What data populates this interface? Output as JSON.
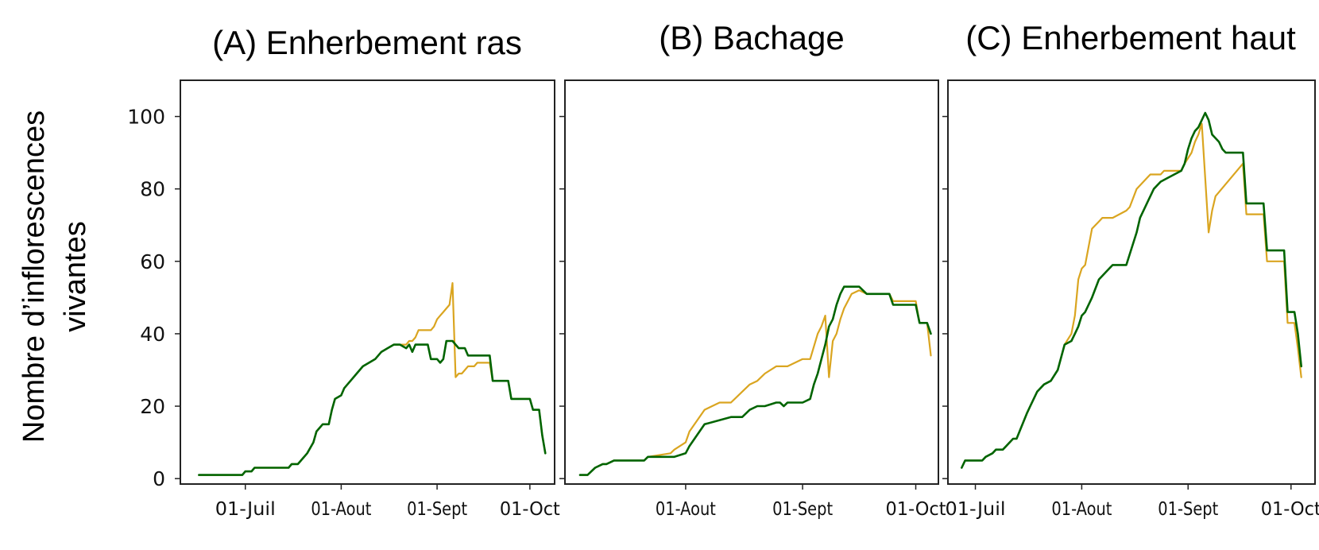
{
  "ylabel_lines": [
    "Nombre d’inflorescences",
    "vivantes"
  ],
  "colors": {
    "series_1": "#DAA520",
    "series_2": "#006400"
  },
  "chart_data": [
    {
      "type": "line",
      "title": "(A) Enherbement ras",
      "xlabel": "",
      "ylabel": "Nombre d’inflorescences vivantes",
      "ylim": [
        -1.5,
        110
      ],
      "xlim": [
        "2021-06-10",
        "2021-10-09"
      ],
      "xticks": [
        {
          "date": "2021-07-01",
          "label": "01-Juil"
        },
        {
          "date": "2021-08-01",
          "label": "01-Aout"
        },
        {
          "date": "2021-09-01",
          "label": "01-Sept"
        },
        {
          "date": "2021-10-01",
          "label": "01-Oct"
        }
      ],
      "yticks": [
        0,
        20,
        40,
        60,
        80,
        100
      ],
      "grid": false,
      "series": [
        {
          "color": "#DAA520",
          "x": [
            "2021-06-16",
            "2021-06-30",
            "2021-07-01",
            "2021-07-03",
            "2021-07-04",
            "2021-07-15",
            "2021-07-16",
            "2021-07-18",
            "2021-07-19",
            "2021-07-21",
            "2021-07-23",
            "2021-07-24",
            "2021-07-26",
            "2021-07-28",
            "2021-07-29",
            "2021-07-30",
            "2021-08-01",
            "2021-08-02",
            "2021-08-04",
            "2021-08-06",
            "2021-08-08",
            "2021-08-10",
            "2021-08-12",
            "2021-08-14",
            "2021-08-16",
            "2021-08-18",
            "2021-08-20",
            "2021-08-22",
            "2021-08-23",
            "2021-08-24",
            "2021-08-25",
            "2021-08-26",
            "2021-08-27",
            "2021-08-28",
            "2021-08-29",
            "2021-08-30",
            "2021-08-31",
            "2021-09-01",
            "2021-09-02",
            "2021-09-03",
            "2021-09-04",
            "2021-09-05",
            "2021-09-06",
            "2021-09-07",
            "2021-09-08",
            "2021-09-09",
            "2021-09-10",
            "2021-09-11",
            "2021-09-12",
            "2021-09-13",
            "2021-09-14",
            "2021-09-15",
            "2021-09-17",
            "2021-09-18",
            "2021-09-19",
            "2021-09-24",
            "2021-09-25",
            "2021-10-01",
            "2021-10-02",
            "2021-10-04",
            "2021-10-05",
            "2021-10-06"
          ],
          "y": [
            1,
            1,
            2,
            2,
            3,
            3,
            4,
            4,
            5,
            7,
            10,
            13,
            15,
            15,
            19,
            22,
            23,
            25,
            27,
            29,
            31,
            32,
            33,
            35,
            36,
            37,
            37,
            37,
            38,
            38,
            39,
            41,
            41,
            41,
            41,
            41,
            42,
            44,
            45,
            46,
            47,
            48,
            54,
            28,
            29,
            29,
            30,
            31,
            31,
            31,
            32,
            32,
            32,
            32,
            27,
            27,
            22,
            22,
            19,
            19,
            12,
            7
          ],
          "name": ""
        },
        {
          "color": "#006400",
          "x": [
            "2021-06-16",
            "2021-06-30",
            "2021-07-01",
            "2021-07-03",
            "2021-07-04",
            "2021-07-15",
            "2021-07-16",
            "2021-07-18",
            "2021-07-19",
            "2021-07-21",
            "2021-07-23",
            "2021-07-24",
            "2021-07-26",
            "2021-07-28",
            "2021-07-29",
            "2021-07-30",
            "2021-08-01",
            "2021-08-02",
            "2021-08-04",
            "2021-08-06",
            "2021-08-08",
            "2021-08-10",
            "2021-08-12",
            "2021-08-14",
            "2021-08-16",
            "2021-08-18",
            "2021-08-20",
            "2021-08-22",
            "2021-08-23",
            "2021-08-24",
            "2021-08-25",
            "2021-08-26",
            "2021-08-27",
            "2021-08-28",
            "2021-08-29",
            "2021-08-30",
            "2021-09-01",
            "2021-09-02",
            "2021-09-03",
            "2021-09-04",
            "2021-09-05",
            "2021-09-06",
            "2021-09-07",
            "2021-09-08",
            "2021-09-09",
            "2021-09-10",
            "2021-09-11",
            "2021-09-12",
            "2021-09-13",
            "2021-09-14",
            "2021-09-15",
            "2021-09-17",
            "2021-09-18",
            "2021-09-19",
            "2021-09-24",
            "2021-09-25",
            "2021-10-01",
            "2021-10-02",
            "2021-10-04",
            "2021-10-05",
            "2021-10-06"
          ],
          "y": [
            1,
            1,
            2,
            2,
            3,
            3,
            4,
            4,
            5,
            7,
            10,
            13,
            15,
            15,
            19,
            22,
            23,
            25,
            27,
            29,
            31,
            32,
            33,
            35,
            36,
            37,
            37,
            36,
            37,
            35,
            37,
            37,
            37,
            37,
            37,
            33,
            33,
            32,
            33,
            38,
            38,
            38,
            37,
            36,
            36,
            36,
            34,
            34,
            34,
            34,
            34,
            34,
            34,
            27,
            27,
            22,
            22,
            19,
            19,
            12,
            7
          ],
          "name": ""
        }
      ]
    },
    {
      "type": "line",
      "title": "(B) Bachage",
      "xlabel": "",
      "ylabel": "",
      "ylim": [
        -1.5,
        110
      ],
      "xlim": [
        "2021-06-30",
        "2021-10-07"
      ],
      "xticks": [
        {
          "date": "2021-08-01",
          "label": "01-Aout"
        },
        {
          "date": "2021-09-01",
          "label": "01-Sept"
        },
        {
          "date": "2021-10-01",
          "label": "01-Oct"
        }
      ],
      "yticks": [
        0,
        20,
        40,
        60,
        80,
        100
      ],
      "grid": false,
      "series": [
        {
          "color": "#DAA520",
          "x": [
            "2021-07-04",
            "2021-07-06",
            "2021-07-07",
            "2021-07-08",
            "2021-07-10",
            "2021-07-11",
            "2021-07-13",
            "2021-07-14",
            "2021-07-21",
            "2021-07-22",
            "2021-07-28",
            "2021-07-29",
            "2021-08-01",
            "2021-08-02",
            "2021-08-04",
            "2021-08-06",
            "2021-08-08",
            "2021-08-10",
            "2021-08-13",
            "2021-08-16",
            "2021-08-18",
            "2021-08-20",
            "2021-08-22",
            "2021-08-25",
            "2021-08-28",
            "2021-09-01",
            "2021-09-03",
            "2021-09-05",
            "2021-09-06",
            "2021-09-07",
            "2021-09-08",
            "2021-09-09",
            "2021-09-10",
            "2021-09-11",
            "2021-09-12",
            "2021-09-14",
            "2021-09-16",
            "2021-09-18",
            "2021-09-24",
            "2021-09-25",
            "2021-10-01",
            "2021-10-02",
            "2021-10-04",
            "2021-10-05"
          ],
          "y": [
            1,
            1,
            2,
            3,
            4,
            4,
            5,
            5,
            5,
            6,
            7,
            8,
            10,
            13,
            16,
            19,
            20,
            21,
            21,
            24,
            26,
            27,
            29,
            31,
            31,
            33,
            33,
            40,
            42,
            45,
            28,
            38,
            40,
            44,
            47,
            51,
            52,
            51,
            51,
            49,
            49,
            43,
            43,
            34
          ],
          "name": ""
        },
        {
          "color": "#006400",
          "x": [
            "2021-07-04",
            "2021-07-06",
            "2021-07-07",
            "2021-07-08",
            "2021-07-10",
            "2021-07-11",
            "2021-07-13",
            "2021-07-14",
            "2021-07-21",
            "2021-07-22",
            "2021-07-28",
            "2021-07-29",
            "2021-08-01",
            "2021-08-02",
            "2021-08-04",
            "2021-08-06",
            "2021-08-13",
            "2021-08-16",
            "2021-08-18",
            "2021-08-20",
            "2021-08-22",
            "2021-08-25",
            "2021-08-26",
            "2021-08-27",
            "2021-08-28",
            "2021-09-01",
            "2021-09-03",
            "2021-09-04",
            "2021-09-05",
            "2021-09-06",
            "2021-09-07",
            "2021-09-08",
            "2021-09-09",
            "2021-09-10",
            "2021-09-11",
            "2021-09-12",
            "2021-09-14",
            "2021-09-16",
            "2021-09-18",
            "2021-09-24",
            "2021-09-25",
            "2021-10-01",
            "2021-10-02",
            "2021-10-04",
            "2021-10-05"
          ],
          "y": [
            1,
            1,
            2,
            3,
            4,
            4,
            5,
            5,
            5,
            6,
            6,
            6,
            7,
            9,
            12,
            15,
            17,
            17,
            19,
            20,
            20,
            21,
            21,
            20,
            21,
            21,
            22,
            26,
            29,
            33,
            37,
            42,
            44,
            48,
            51,
            53,
            53,
            53,
            51,
            51,
            48,
            48,
            43,
            43,
            40
          ],
          "name": ""
        }
      ]
    },
    {
      "type": "line",
      "title": "(C) Enherbement haut",
      "xlabel": "",
      "ylabel": "",
      "ylim": [
        -1.5,
        110
      ],
      "xlim": [
        "2021-06-23",
        "2021-10-08"
      ],
      "xticks": [
        {
          "date": "2021-07-01",
          "label": "01-Juil"
        },
        {
          "date": "2021-08-01",
          "label": "01-Aout"
        },
        {
          "date": "2021-09-01",
          "label": "01-Sept"
        },
        {
          "date": "2021-10-01",
          "label": "01-Oct"
        }
      ],
      "yticks": [
        0,
        20,
        40,
        60,
        80,
        100
      ],
      "grid": false,
      "series": [
        {
          "color": "#DAA520",
          "x": [
            "2021-06-27",
            "2021-06-28",
            "2021-07-03",
            "2021-07-04",
            "2021-07-06",
            "2021-07-07",
            "2021-07-09",
            "2021-07-10",
            "2021-07-12",
            "2021-07-13",
            "2021-07-16",
            "2021-07-17",
            "2021-07-19",
            "2021-07-21",
            "2021-07-23",
            "2021-07-25",
            "2021-07-27",
            "2021-07-29",
            "2021-07-30",
            "2021-07-31",
            "2021-08-01",
            "2021-08-02",
            "2021-08-04",
            "2021-08-06",
            "2021-08-07",
            "2021-08-08",
            "2021-08-10",
            "2021-08-14",
            "2021-08-15",
            "2021-08-17",
            "2021-08-20",
            "2021-08-21",
            "2021-08-24",
            "2021-08-25",
            "2021-08-30",
            "2021-08-31",
            "2021-09-02",
            "2021-09-03",
            "2021-09-04",
            "2021-09-05",
            "2021-09-07",
            "2021-09-08",
            "2021-09-09",
            "2021-09-17",
            "2021-09-18",
            "2021-09-23",
            "2021-09-24",
            "2021-09-29",
            "2021-09-30",
            "2021-10-02",
            "2021-10-03",
            "2021-10-04"
          ],
          "y": [
            3,
            5,
            5,
            6,
            7,
            8,
            8,
            9,
            11,
            11,
            18,
            20,
            24,
            26,
            27,
            30,
            37,
            40,
            45,
            55,
            58,
            59,
            69,
            71,
            72,
            72,
            72,
            74,
            75,
            80,
            83,
            84,
            84,
            85,
            85,
            87,
            90,
            93,
            95,
            98,
            68,
            74,
            78,
            87,
            73,
            73,
            60,
            60,
            43,
            43,
            36,
            28
          ],
          "name": ""
        },
        {
          "color": "#006400",
          "x": [
            "2021-06-27",
            "2021-06-28",
            "2021-07-03",
            "2021-07-04",
            "2021-07-06",
            "2021-07-07",
            "2021-07-09",
            "2021-07-10",
            "2021-07-12",
            "2021-07-13",
            "2021-07-16",
            "2021-07-17",
            "2021-07-19",
            "2021-07-21",
            "2021-07-23",
            "2021-07-25",
            "2021-07-27",
            "2021-07-29",
            "2021-07-30",
            "2021-07-31",
            "2021-08-01",
            "2021-08-02",
            "2021-08-04",
            "2021-08-06",
            "2021-08-08",
            "2021-08-10",
            "2021-08-12",
            "2021-08-14",
            "2021-08-17",
            "2021-08-18",
            "2021-08-20",
            "2021-08-22",
            "2021-08-24",
            "2021-08-26",
            "2021-08-30",
            "2021-08-31",
            "2021-09-01",
            "2021-09-02",
            "2021-09-03",
            "2021-09-04",
            "2021-09-05",
            "2021-09-06",
            "2021-09-07",
            "2021-09-08",
            "2021-09-09",
            "2021-09-10",
            "2021-09-11",
            "2021-09-12",
            "2021-09-17",
            "2021-09-18",
            "2021-09-23",
            "2021-09-24",
            "2021-09-29",
            "2021-09-30",
            "2021-10-02",
            "2021-10-03",
            "2021-10-04"
          ],
          "y": [
            3,
            5,
            5,
            6,
            7,
            8,
            8,
            9,
            11,
            11,
            18,
            20,
            24,
            26,
            27,
            30,
            37,
            38,
            40,
            42,
            45,
            46,
            50,
            55,
            57,
            59,
            59,
            59,
            68,
            72,
            76,
            80,
            82,
            83,
            85,
            87,
            91,
            94,
            96,
            97,
            99,
            101,
            99,
            95,
            94,
            93,
            91,
            90,
            90,
            76,
            76,
            63,
            63,
            46,
            46,
            40,
            31
          ],
          "name": ""
        }
      ]
    }
  ]
}
